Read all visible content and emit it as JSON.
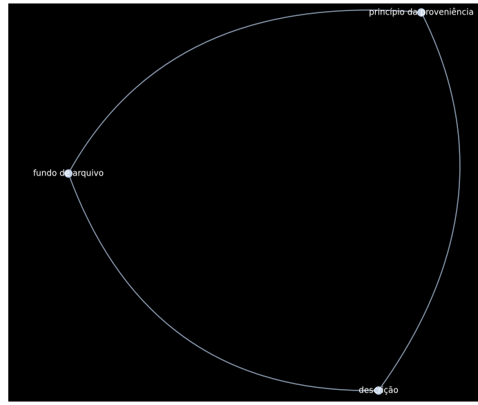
{
  "nodes": [
    {
      "label": "princípio da proveniência"
    },
    {
      "label": "fundo de arquivo"
    },
    {
      "label": "descrição"
    }
  ],
  "edges": [
    {
      "source": 1,
      "target": 0
    },
    {
      "source": 0,
      "target": 2
    },
    {
      "source": 2,
      "target": 1
    }
  ]
}
